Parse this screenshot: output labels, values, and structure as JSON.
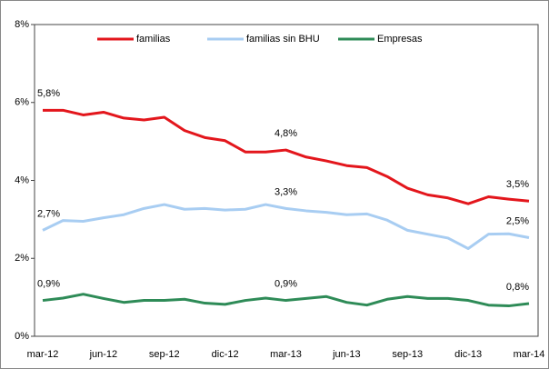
{
  "chart_data": {
    "type": "line",
    "categories": [
      "mar-12",
      null,
      null,
      "jun-12",
      null,
      null,
      "sep-12",
      null,
      null,
      "dic-12",
      null,
      null,
      "mar-13",
      null,
      null,
      "jun-13",
      null,
      null,
      "sep-13",
      null,
      null,
      "dic-13",
      null,
      null,
      "mar-14"
    ],
    "series": [
      {
        "name": "familias",
        "color": "#e3161c",
        "values": [
          5.8,
          5.8,
          5.68,
          5.75,
          5.6,
          5.55,
          5.62,
          5.28,
          5.1,
          5.02,
          4.73,
          4.73,
          4.78,
          4.6,
          4.5,
          4.38,
          4.33,
          4.1,
          3.8,
          3.63,
          3.55,
          3.4,
          3.58,
          3.52,
          3.47
        ],
        "value_labels": [
          "5,8%",
          null,
          null,
          null,
          null,
          null,
          null,
          null,
          null,
          null,
          null,
          null,
          "4,8%",
          null,
          null,
          null,
          null,
          null,
          null,
          null,
          null,
          null,
          null,
          null,
          "3,5%"
        ]
      },
      {
        "name": "familias sin BHU",
        "color": "#a8cdf2",
        "values": [
          2.72,
          2.97,
          2.95,
          3.04,
          3.12,
          3.28,
          3.38,
          3.26,
          3.28,
          3.24,
          3.26,
          3.38,
          3.28,
          3.22,
          3.18,
          3.12,
          3.14,
          2.98,
          2.72,
          2.62,
          2.52,
          2.25,
          2.62,
          2.63,
          2.53
        ],
        "value_labels": [
          "2,7%",
          null,
          null,
          null,
          null,
          null,
          null,
          null,
          null,
          null,
          null,
          null,
          "3,3%",
          null,
          null,
          null,
          null,
          null,
          null,
          null,
          null,
          null,
          null,
          null,
          "2,5%"
        ]
      },
      {
        "name": "Empresas",
        "color": "#2e8b57",
        "values": [
          0.92,
          0.98,
          1.08,
          0.97,
          0.87,
          0.92,
          0.92,
          0.95,
          0.85,
          0.82,
          0.92,
          0.98,
          0.92,
          0.97,
          1.02,
          0.87,
          0.8,
          0.95,
          1.02,
          0.97,
          0.97,
          0.92,
          0.8,
          0.78,
          0.84
        ],
        "value_labels": [
          "0,9%",
          null,
          null,
          null,
          null,
          null,
          null,
          null,
          null,
          null,
          null,
          null,
          "0,9%",
          null,
          null,
          null,
          null,
          null,
          null,
          null,
          null,
          null,
          null,
          null,
          "0,8%"
        ]
      }
    ],
    "ylim": [
      0,
      8
    ],
    "yticks": [
      {
        "value": 0,
        "label": "0%"
      },
      {
        "value": 2,
        "label": "2%"
      },
      {
        "value": 4,
        "label": "4%"
      },
      {
        "value": 6,
        "label": "6%"
      },
      {
        "value": 8,
        "label": "8%"
      }
    ],
    "legend": "top"
  }
}
